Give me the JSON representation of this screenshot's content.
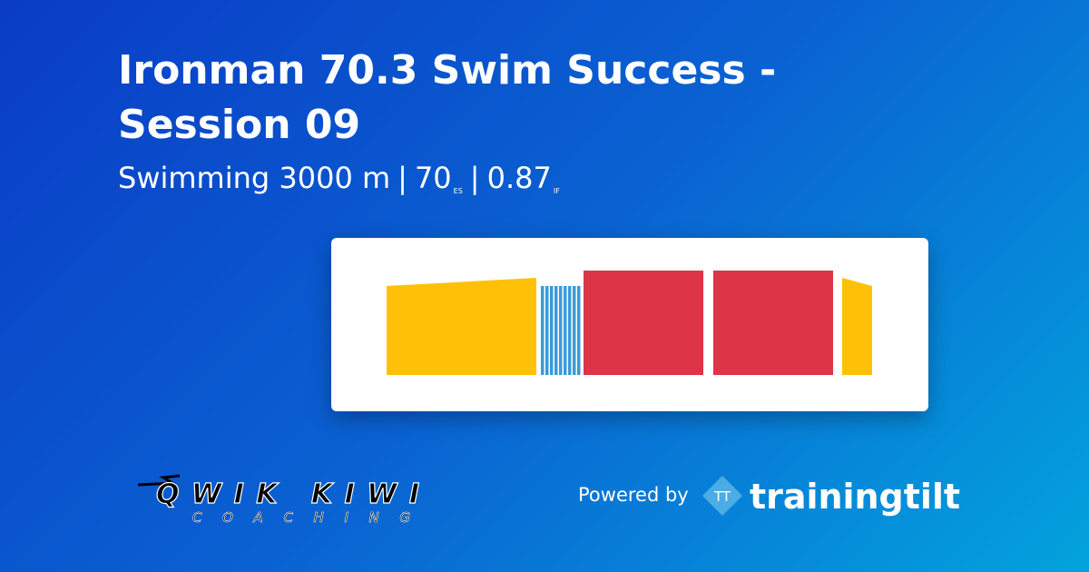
{
  "header": {
    "title": "Ironman 70.3 Swim Success - Session 09",
    "sport_distance": "Swimming 3000 m",
    "separator": "|",
    "score": "70",
    "score_unit": "ES",
    "intensity": "0.87",
    "intensity_unit": "IF"
  },
  "footer": {
    "coach_logo": {
      "name": "QWIK KIWI",
      "tagline": "COACHING"
    },
    "powered_by": "Powered by",
    "brand_icon": "TT",
    "brand_name": "trainingtilt"
  }
}
